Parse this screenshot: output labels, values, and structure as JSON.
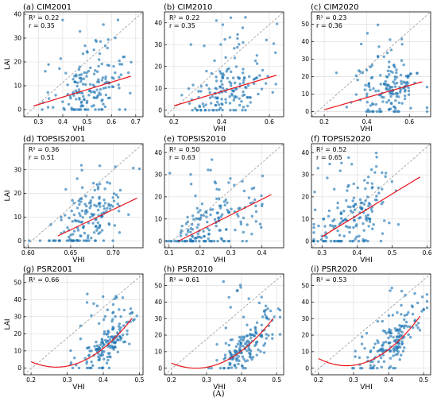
{
  "figure": {
    "caption": "(A)"
  },
  "colors": {
    "points": "#1f77b4",
    "fit": "#e8141b",
    "identity": "#8c8c8c",
    "grid": "#d9d9d9"
  },
  "chart_data": [
    {
      "type": "scatter",
      "title": "(a) CIM2001",
      "xlabel": "VHI",
      "ylabel": "LAI",
      "stats": [
        "R² = 0.22",
        "r = 0.35"
      ],
      "xlim": [
        0.24,
        0.73
      ],
      "ylim": [
        -3,
        41
      ],
      "xticks": [
        0.3,
        0.4,
        0.5,
        0.6,
        0.7
      ],
      "yticks": [
        0,
        10,
        20,
        30,
        40
      ],
      "fit": {
        "kind": "linear",
        "x": [
          0.28,
          0.68
        ],
        "y": [
          1.5,
          14
        ]
      },
      "identity": {
        "x": [
          0.24,
          0.73
        ],
        "y": [
          -3,
          41
        ]
      },
      "points": {
        "count": 170,
        "x_center": 0.52,
        "x_spread": 0.08,
        "y_mode": 6,
        "y_spread": 6,
        "y_max": 38
      }
    },
    {
      "type": "scatter",
      "title": "(b) CIM2010",
      "xlabel": "VHI",
      "ylabel": "",
      "stats": [
        "R² = 0.22",
        "r = 0.35"
      ],
      "xlim": [
        0.16,
        0.66
      ],
      "ylim": [
        -3,
        45
      ],
      "xticks": [
        0.2,
        0.4,
        0.6
      ],
      "yticks": [
        0,
        10,
        20,
        30,
        40
      ],
      "fit": {
        "kind": "linear",
        "x": [
          0.2,
          0.63
        ],
        "y": [
          2,
          16
        ]
      },
      "identity": {
        "x": [
          0.16,
          0.66
        ],
        "y": [
          -3,
          45
        ]
      },
      "points": {
        "count": 170,
        "x_center": 0.44,
        "x_spread": 0.09,
        "y_mode": 7,
        "y_spread": 7,
        "y_max": 43
      }
    },
    {
      "type": "scatter",
      "title": "(c) CIM2020",
      "xlabel": "VHI",
      "ylabel": "",
      "stats": [
        "R² = 0.23",
        "r = 0.36"
      ],
      "xlim": [
        0.14,
        0.7
      ],
      "ylim": [
        -3,
        57
      ],
      "xticks": [
        0.2,
        0.4,
        0.6
      ],
      "yticks": [
        0,
        10,
        20,
        30,
        40,
        50
      ],
      "fit": {
        "kind": "linear",
        "x": [
          0.2,
          0.66
        ],
        "y": [
          1,
          17
        ]
      },
      "identity": {
        "x": [
          0.14,
          0.7
        ],
        "y": [
          -3,
          57
        ]
      },
      "points": {
        "count": 170,
        "x_center": 0.5,
        "x_spread": 0.08,
        "y_mode": 8,
        "y_spread": 8,
        "y_max": 52
      }
    },
    {
      "type": "scatter",
      "title": "(d) TOPSIS2001",
      "xlabel": "VHI",
      "ylabel": "LAI",
      "stats": [
        "R² = 0.36",
        "r = 0.51"
      ],
      "xlim": [
        0.595,
        0.735
      ],
      "ylim": [
        -3,
        41
      ],
      "xticks": [
        0.6,
        0.65,
        0.7
      ],
      "xtick_labels": [
        "0.60",
        "0.65",
        "0.70"
      ],
      "yticks": [
        0,
        10,
        20,
        30
      ],
      "fit": {
        "kind": "linear",
        "x": [
          0.635,
          0.728
        ],
        "y": [
          2,
          18
        ]
      },
      "identity": {
        "x": [
          0.595,
          0.735
        ],
        "y": [
          -3,
          41
        ]
      },
      "points": {
        "count": 170,
        "x_center": 0.67,
        "x_spread": 0.022,
        "y_mode": 6,
        "y_spread": 7,
        "y_max": 37
      }
    },
    {
      "type": "scatter",
      "title": "(e) TOPSIS2010",
      "xlabel": "VHI",
      "ylabel": "",
      "stats": [
        "R² = 0.50",
        "r = 0.63"
      ],
      "xlim": [
        0.085,
        0.47
      ],
      "ylim": [
        -3,
        44
      ],
      "xticks": [
        0.1,
        0.2,
        0.3,
        0.4
      ],
      "yticks": [
        0,
        10,
        20,
        30,
        40
      ],
      "fit": {
        "kind": "linear",
        "x": [
          0.13,
          0.43
        ],
        "y": [
          0,
          21
        ]
      },
      "identity": {
        "x": [
          0.085,
          0.47
        ],
        "y": [
          -3,
          44
        ]
      },
      "points": {
        "count": 170,
        "x_center": 0.24,
        "x_spread": 0.08,
        "y_mode": 7,
        "y_spread": 7,
        "y_max": 40
      }
    },
    {
      "type": "scatter",
      "title": "(f) TOPSIS2020",
      "xlabel": "VHI",
      "ylabel": "",
      "stats": [
        "R² = 0.52",
        "r = 0.65"
      ],
      "xlim": [
        0.27,
        0.61
      ],
      "ylim": [
        -3,
        44
      ],
      "xticks": [
        0.3,
        0.4,
        0.5,
        0.6
      ],
      "yticks": [
        0,
        10,
        20,
        30,
        40
      ],
      "fit": {
        "kind": "linear",
        "x": [
          0.3,
          0.58
        ],
        "y": [
          2,
          29
        ]
      },
      "identity": {
        "x": [
          0.27,
          0.61
        ],
        "y": [
          -3,
          44
        ]
      },
      "points": {
        "count": 170,
        "x_center": 0.38,
        "x_spread": 0.06,
        "y_mode": 7,
        "y_spread": 8,
        "y_max": 41
      }
    },
    {
      "type": "scatter",
      "title": "(g) PSR2001",
      "xlabel": "VHI",
      "ylabel": "LAI",
      "stats": [
        "R² = 0.66"
      ],
      "xlim": [
        0.18,
        0.51
      ],
      "ylim": [
        -4,
        55
      ],
      "xticks": [
        0.2,
        0.3,
        0.4,
        0.5
      ],
      "yticks": [
        0,
        10,
        20,
        30,
        40,
        50
      ],
      "fit": {
        "kind": "quadratic",
        "vertex_x": 0.27,
        "vertex_y": 0.5,
        "a": 650,
        "x": [
          0.2,
          0.48
        ]
      },
      "identity": {
        "x": [
          0.18,
          0.51
        ],
        "y": [
          -4,
          55
        ]
      },
      "points": {
        "count": 170,
        "x_center": 0.41,
        "x_spread": 0.04,
        "y_mode": 4,
        "y_spread": 5,
        "y_max": 51
      }
    },
    {
      "type": "scatter",
      "title": "(h) PSR2010",
      "xlabel": "VHI",
      "ylabel": "",
      "stats": [
        "R² = 0.61"
      ],
      "xlim": [
        0.18,
        0.52
      ],
      "ylim": [
        -4,
        57
      ],
      "xticks": [
        0.2,
        0.3,
        0.4,
        0.5
      ],
      "yticks": [
        0,
        10,
        20,
        30,
        40,
        50
      ],
      "fit": {
        "kind": "quadratic",
        "vertex_x": 0.27,
        "vertex_y": 0,
        "a": 620,
        "x": [
          0.2,
          0.49
        ]
      },
      "identity": {
        "x": [
          0.18,
          0.52
        ],
        "y": [
          -4,
          57
        ]
      },
      "points": {
        "count": 170,
        "x_center": 0.41,
        "x_spread": 0.045,
        "y_mode": 5,
        "y_spread": 6,
        "y_max": 53
      }
    },
    {
      "type": "scatter",
      "title": "(i) PSR2020",
      "xlabel": "VHI",
      "ylabel": "",
      "stats": [
        "R² = 0.53"
      ],
      "xlim": [
        0.18,
        0.52
      ],
      "ylim": [
        -4,
        57
      ],
      "xticks": [
        0.2,
        0.3,
        0.4,
        0.5
      ],
      "yticks": [
        0,
        10,
        20,
        30,
        40,
        50
      ],
      "fit": {
        "kind": "quadratic",
        "vertex_x": 0.28,
        "vertex_y": 1.5,
        "a": 680,
        "x": [
          0.2,
          0.49
        ]
      },
      "identity": {
        "x": [
          0.18,
          0.52
        ],
        "y": [
          -4,
          57
        ]
      },
      "points": {
        "count": 170,
        "x_center": 0.41,
        "x_spread": 0.045,
        "y_mode": 6,
        "y_spread": 6,
        "y_max": 52
      }
    }
  ]
}
